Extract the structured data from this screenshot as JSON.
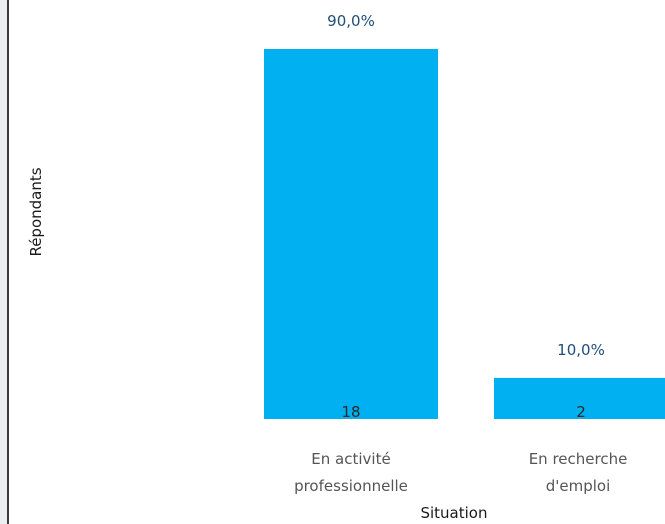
{
  "chart_data": {
    "type": "bar",
    "categories": [
      [
        "En activité",
        "professionnelle"
      ],
      [
        "En recherche",
        "d'emploi"
      ]
    ],
    "values": [
      18,
      2
    ],
    "data_labels_percent": [
      "90,0%",
      "10,0%"
    ],
    "data_labels_count": [
      "18",
      "2"
    ],
    "xlabel": "Situation",
    "ylabel": "Répondants",
    "ylim": [
      0,
      18
    ],
    "grid": false,
    "legend": "none",
    "colors": {
      "bar": "#00b0f0",
      "percent_label": "#1f4e79",
      "count_label": "#2a2a2a"
    }
  }
}
